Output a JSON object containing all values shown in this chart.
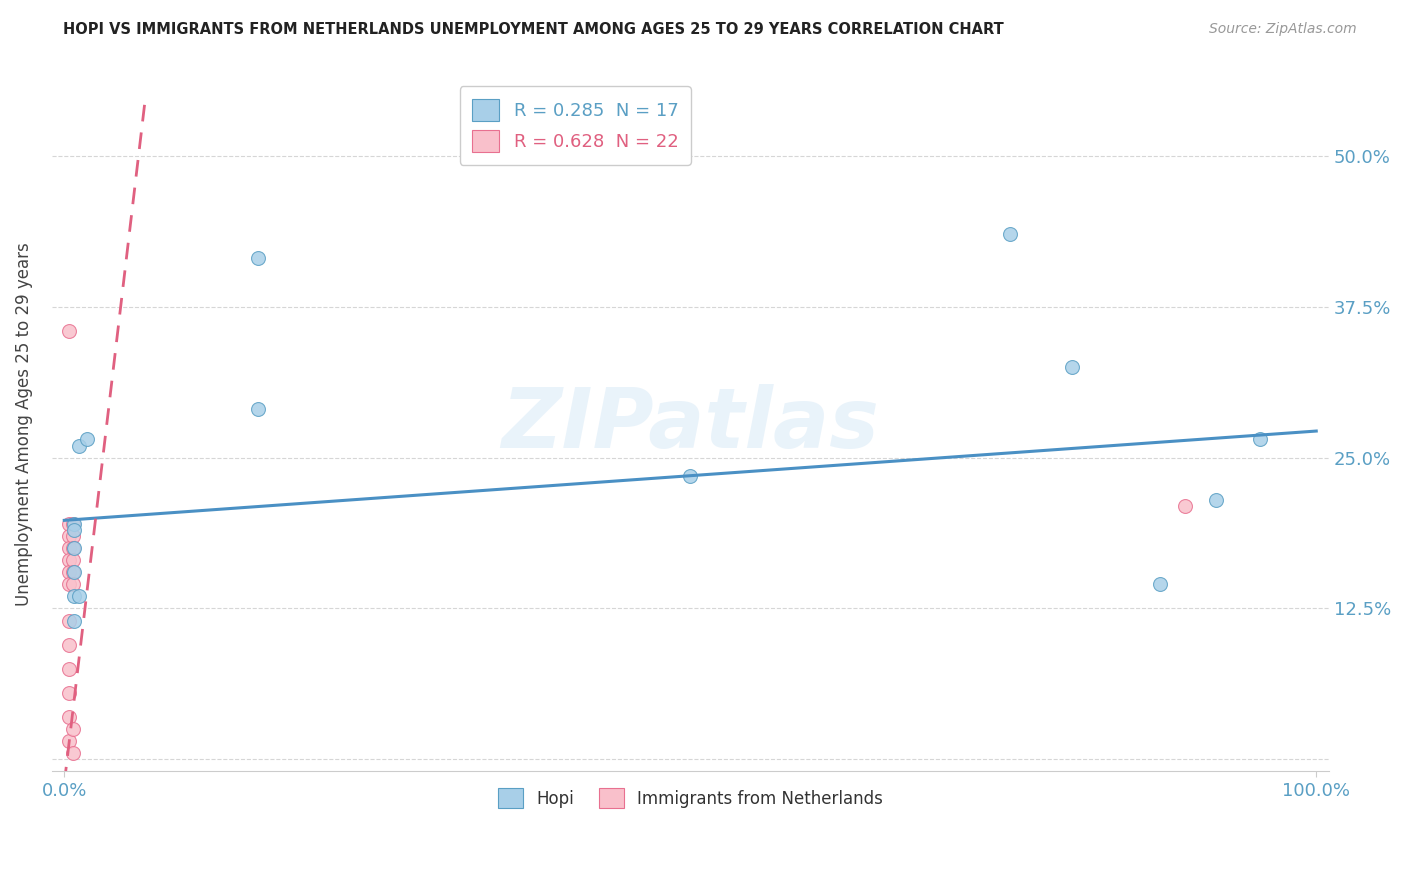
{
  "title": "HOPI VS IMMIGRANTS FROM NETHERLANDS UNEMPLOYMENT AMONG AGES 25 TO 29 YEARS CORRELATION CHART",
  "source": "Source: ZipAtlas.com",
  "ylabel": "Unemployment Among Ages 25 to 29 years",
  "ytick_values": [
    0,
    0.125,
    0.25,
    0.375,
    0.5
  ],
  "ytick_labels": [
    "",
    "12.5%",
    "25.0%",
    "37.5%",
    "50.0%"
  ],
  "ytick_labels_right": [
    "",
    "12.5%",
    "25.0%",
    "37.5%",
    "50.0%"
  ],
  "xlim": [
    -0.01,
    1.01
  ],
  "ylim": [
    -0.01,
    0.565
  ],
  "background_color": "#ffffff",
  "grid_color": "#cccccc",
  "watermark": "ZIPatlas",
  "hopi_color": "#a8cfe8",
  "hopi_edge_color": "#5a9fc4",
  "immigrants_color": "#f9c0cb",
  "immigrants_edge_color": "#e87090",
  "hopi_R": 0.285,
  "hopi_N": 17,
  "immigrants_R": 0.628,
  "immigrants_N": 22,
  "hopi_scatter_x": [
    0.008,
    0.008,
    0.008,
    0.008,
    0.008,
    0.008,
    0.012,
    0.012,
    0.018,
    0.155,
    0.155,
    0.5,
    0.755,
    0.805,
    0.875,
    0.92,
    0.955
  ],
  "hopi_scatter_y": [
    0.195,
    0.175,
    0.155,
    0.135,
    0.115,
    0.19,
    0.26,
    0.135,
    0.265,
    0.415,
    0.29,
    0.235,
    0.435,
    0.325,
    0.145,
    0.215,
    0.265
  ],
  "immigrants_scatter_x": [
    0.004,
    0.004,
    0.004,
    0.004,
    0.004,
    0.004,
    0.004,
    0.004,
    0.004,
    0.004,
    0.004,
    0.004,
    0.004,
    0.007,
    0.007,
    0.007,
    0.007,
    0.007,
    0.007,
    0.007,
    0.007,
    0.895
  ],
  "immigrants_scatter_y": [
    0.355,
    0.195,
    0.185,
    0.175,
    0.165,
    0.155,
    0.145,
    0.115,
    0.095,
    0.075,
    0.055,
    0.035,
    0.015,
    0.195,
    0.185,
    0.175,
    0.165,
    0.155,
    0.145,
    0.025,
    0.005,
    0.21
  ],
  "hopi_trend_x": [
    0.0,
    1.0
  ],
  "hopi_trend_y": [
    0.198,
    0.272
  ],
  "immigrants_trend_x": [
    0.0,
    0.065
  ],
  "immigrants_trend_y": [
    -0.02,
    0.55
  ],
  "legend_entries": [
    {
      "label": "R = 0.285  N = 17",
      "color": "#5a9fc4"
    },
    {
      "label": "R = 0.628  N = 22",
      "color": "#e06080"
    }
  ],
  "legend_label_hopi": "Hopi",
  "legend_label_immigrants": "Immigrants from Netherlands",
  "marker_size": 100,
  "trend_blue_color": "#4a90c4",
  "trend_pink_color": "#e06080"
}
